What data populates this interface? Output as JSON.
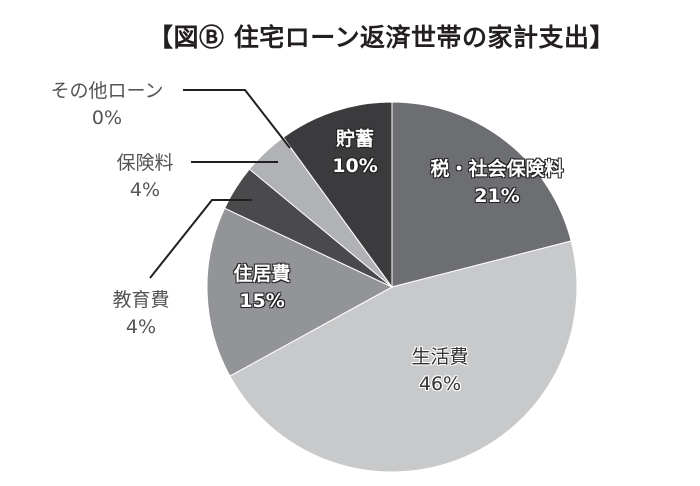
{
  "title": "【図Ⓑ 住宅ローン返済世帯の家計支出】",
  "chart_data": {
    "type": "pie",
    "title": "【図Ⓑ 住宅ローン返済世帯の家計支出】",
    "start_angle": "12 o'clock, clockwise",
    "categories": [
      "税・社会保険料",
      "生活費",
      "住居費",
      "教育費",
      "保険料",
      "その他ローン",
      "貯蓄"
    ],
    "values": [
      21,
      46,
      15,
      4,
      4,
      0,
      10
    ],
    "unit": "%",
    "colors": [
      "#6d6e72",
      "#c8c9cb",
      "#939497",
      "#4a4a4d",
      "#b1b2b5",
      "#8a8a8a",
      "#3b3b3d"
    ],
    "labels_inside": [
      "税・社会保険料",
      "生活費",
      "住居費",
      "貯蓄"
    ],
    "labels_outside_with_leader": [
      "教育費",
      "保険料",
      "その他ローン"
    ]
  },
  "labels": {
    "tax": {
      "name": "税・社会保険料",
      "pct": "21%"
    },
    "living": {
      "name": "生活費",
      "pct": "46%"
    },
    "housing": {
      "name": "住居費",
      "pct": "15%"
    },
    "education": {
      "name": "教育費",
      "pct": "4%"
    },
    "insurance": {
      "name": "保険料",
      "pct": "4%"
    },
    "other_loan": {
      "name": "その他ローン",
      "pct": "0%"
    },
    "savings": {
      "name": "貯蓄",
      "pct": "10%"
    }
  }
}
